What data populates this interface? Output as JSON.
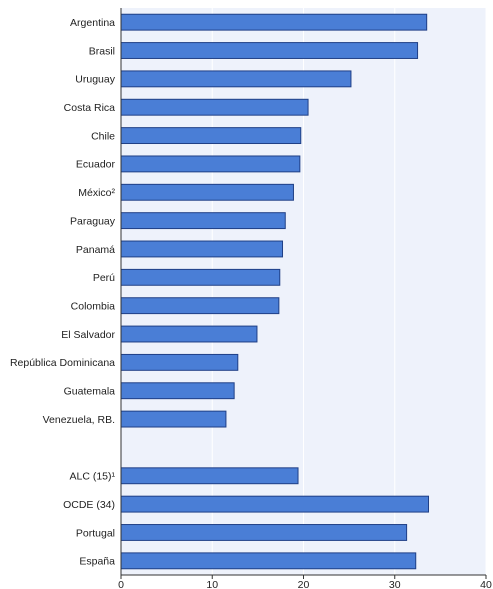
{
  "chart_data": {
    "type": "bar",
    "orientation": "horizontal",
    "title": "",
    "xlabel": "",
    "ylabel": "",
    "xlim": [
      0,
      40
    ],
    "x_ticks": [
      0,
      10,
      20,
      30,
      40
    ],
    "grid": true,
    "legend": "none",
    "colors": {
      "bar_fill": "#4a7ed6",
      "bar_stroke": "#1f3f86",
      "plot_background": "#eef2fb",
      "grid": "#ffffff",
      "axis": "#333333"
    },
    "categories": [
      "Argentina",
      "Brasil",
      "Uruguay",
      "Costa Rica",
      "Chile",
      "Ecuador",
      "México²",
      "Paraguay",
      "Panamá",
      "Perú",
      "Colombia",
      "El Salvador",
      "República Dominicana",
      "Guatemala",
      "Venezuela, RB.",
      "",
      "ALC (15)¹",
      "OCDE (34)",
      "Portugal",
      "España"
    ],
    "values": [
      33.5,
      32.5,
      25.2,
      20.5,
      19.7,
      19.6,
      18.9,
      18.0,
      17.7,
      17.4,
      17.3,
      14.9,
      12.8,
      12.4,
      11.5,
      null,
      19.4,
      33.7,
      31.3,
      32.3
    ]
  }
}
